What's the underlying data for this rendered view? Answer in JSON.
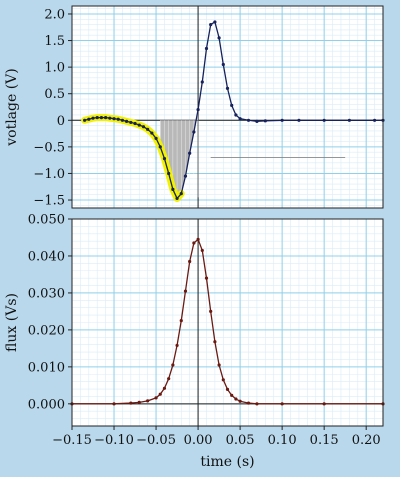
{
  "chart_data": [
    {
      "type": "line",
      "title": "",
      "xlabel": "",
      "ylabel": "votlage (V)",
      "xlim": [
        -0.15,
        0.22
      ],
      "ylim": [
        -1.65,
        2.15
      ],
      "grid": true,
      "yticks": [
        2.0,
        1.5,
        1.0,
        0.5,
        0,
        -0.5,
        -1.0,
        -1.5
      ],
      "ytick_labels": [
        "2.0",
        "1.5",
        "1.0",
        "0.5",
        "0",
        "−0.5",
        "−1.0",
        "−1.5"
      ],
      "shaded_region": {
        "x": [
          -0.045,
          0.0
        ],
        "color": "#b8b8b8"
      },
      "series": [
        {
          "color": "#17215a",
          "highlight_color": "#f2f200",
          "highlight_x_max": -0.02,
          "x": [
            -0.135,
            -0.13,
            -0.125,
            -0.12,
            -0.115,
            -0.11,
            -0.105,
            -0.1,
            -0.095,
            -0.09,
            -0.085,
            -0.08,
            -0.075,
            -0.07,
            -0.065,
            -0.06,
            -0.055,
            -0.05,
            -0.045,
            -0.04,
            -0.035,
            -0.03,
            -0.025,
            -0.02,
            -0.015,
            -0.01,
            -0.005,
            0.0,
            0.005,
            0.01,
            0.015,
            0.02,
            0.025,
            0.03,
            0.035,
            0.04,
            0.045,
            0.05,
            0.06,
            0.07,
            0.08,
            0.1,
            0.12,
            0.15,
            0.18,
            0.21,
            0.22
          ],
          "y": [
            0.0,
            0.02,
            0.04,
            0.05,
            0.05,
            0.05,
            0.04,
            0.03,
            0.02,
            0.0,
            -0.02,
            -0.04,
            -0.06,
            -0.09,
            -0.12,
            -0.17,
            -0.24,
            -0.34,
            -0.5,
            -0.72,
            -1.0,
            -1.3,
            -1.47,
            -1.38,
            -1.05,
            -0.62,
            -0.22,
            0.2,
            0.72,
            1.35,
            1.8,
            1.85,
            1.55,
            1.05,
            0.6,
            0.28,
            0.1,
            0.03,
            0.0,
            -0.02,
            -0.01,
            0.0,
            0.0,
            0.0,
            0.0,
            0.0,
            0.0
          ]
        }
      ]
    },
    {
      "type": "line",
      "title": "",
      "xlabel": "time (s)",
      "ylabel": "flux (Vs)",
      "xlim": [
        -0.15,
        0.22
      ],
      "ylim": [
        -0.006,
        0.05
      ],
      "grid": true,
      "xticks": [
        -0.15,
        -0.1,
        -0.05,
        0.0,
        0.05,
        0.1,
        0.15,
        0.2
      ],
      "xtick_labels": [
        "−0.15",
        "−0.10",
        "−0.05",
        "0.00",
        "0.05",
        "0.10",
        "0.15",
        "0.20"
      ],
      "yticks": [
        0.05,
        0.04,
        0.03,
        0.02,
        0.01,
        0.0
      ],
      "ytick_labels": [
        "0.050",
        "0.040",
        "0.030",
        "0.020",
        "0.010",
        "0.000"
      ],
      "series": [
        {
          "color": "#6b1a12",
          "x": [
            -0.15,
            -0.1,
            -0.08,
            -0.07,
            -0.06,
            -0.05,
            -0.045,
            -0.04,
            -0.035,
            -0.03,
            -0.025,
            -0.02,
            -0.015,
            -0.01,
            -0.005,
            0.0,
            0.005,
            0.01,
            0.015,
            0.02,
            0.025,
            0.03,
            0.035,
            0.04,
            0.045,
            0.05,
            0.06,
            0.07,
            0.1,
            0.15,
            0.22
          ],
          "y": [
            0.0,
            0.0,
            0.0002,
            0.0004,
            0.0008,
            0.0016,
            0.0026,
            0.0042,
            0.0068,
            0.0105,
            0.0158,
            0.0225,
            0.0305,
            0.0385,
            0.0435,
            0.0445,
            0.0415,
            0.034,
            0.025,
            0.0168,
            0.0105,
            0.0065,
            0.0039,
            0.0023,
            0.0013,
            0.0007,
            0.0002,
            0.0,
            0.0,
            0.0,
            0.0
          ]
        }
      ]
    }
  ]
}
